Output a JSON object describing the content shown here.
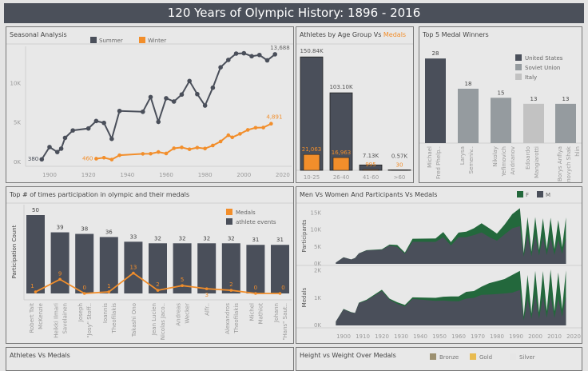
{
  "title": "120 Years of Olympic History: 1896 - 2016",
  "colors": {
    "summer": "#4a4f5a",
    "winter": "#f28e2b",
    "us": "#4a4f5a",
    "soviet": "#959b9f",
    "italy": "#c2c2c2",
    "female": "#23683c",
    "male": "#4a4f5a",
    "bronze": "#9c9070",
    "gold": "#e8bb50",
    "silver": "#e6e6e6"
  },
  "panels": {
    "seasonal": "Seasonal Analysis",
    "age": {
      "prefix": "Athletes by Age Group Vs ",
      "highlight": "Medals"
    },
    "top5": "Top 5 Medal Winners",
    "participation": "Top # of times participation in olympic and their medals",
    "menwomen": "Men Vs Women And Participants Vs Medals",
    "athletes_medals": "Athletes Vs Medals",
    "height_weight": "Height vs Weight Over Medals"
  },
  "height_weight_legend": [
    "Bronze",
    "Gold",
    "Silver"
  ],
  "chart_data": [
    {
      "type": "line",
      "title": "Seasonal Analysis",
      "legend": [
        "Summer",
        "Winter"
      ],
      "legend_position": "top",
      "yticks": [
        "0K",
        "5K",
        "10K"
      ],
      "xticks": [
        "1900",
        "1920",
        "1940",
        "1960",
        "1980",
        "2000",
        "2020"
      ],
      "ylim": [
        0,
        14500
      ],
      "xlim": [
        1887,
        2022
      ],
      "series": [
        {
          "name": "Summer",
          "x": [
            1896,
            1900,
            1904,
            1906,
            1908,
            1912,
            1920,
            1924,
            1928,
            1932,
            1936,
            1948,
            1952,
            1956,
            1960,
            1964,
            1968,
            1972,
            1976,
            1980,
            1984,
            1988,
            1992,
            1996,
            2000,
            2004,
            2008,
            2012,
            2016
          ],
          "y": [
            380,
            1936,
            1301,
            1733,
            3101,
            4040,
            4292,
            5233,
            4992,
            2969,
            6506,
            6405,
            8270,
            5127,
            8119,
            7702,
            8588,
            10304,
            8641,
            7191,
            9454,
            12037,
            12977,
            13780,
            13821,
            13443,
            13602,
            12920,
            13688
          ],
          "labels": {
            "first": "380",
            "last": "13,688"
          }
        },
        {
          "name": "Winter",
          "x": [
            1924,
            1928,
            1932,
            1936,
            1948,
            1952,
            1956,
            1960,
            1964,
            1968,
            1972,
            1976,
            1980,
            1984,
            1988,
            1992,
            1994,
            1998,
            2002,
            2006,
            2010,
            2014
          ],
          "y": [
            460,
            582,
            352,
            895,
            1075,
            1088,
            1307,
            1116,
            1778,
            1891,
            1655,
            1861,
            1746,
            2134,
            2639,
            3436,
            3160,
            3605,
            4109,
            4382,
            4402,
            4891
          ],
          "labels": {
            "first": "460",
            "last": "4,891"
          }
        }
      ]
    },
    {
      "type": "bar",
      "title": "Athletes by Age Group Vs Medals",
      "categories": [
        "10-25",
        "26-40",
        "41-60",
        ">60"
      ],
      "series": [
        {
          "name": "Athletes",
          "values": [
            150840,
            103100,
            7130,
            570
          ],
          "labels": [
            "150.84K",
            "103.10K",
            "7.13K",
            "0.57K"
          ]
        },
        {
          "name": "Medals",
          "values": [
            21063,
            16963,
            995,
            30
          ],
          "labels": [
            "21,063",
            "16,963",
            "995",
            "30"
          ]
        }
      ]
    },
    {
      "type": "bar",
      "title": "Top 5 Medal Winners",
      "legend": [
        "United States",
        "Soviet Union",
        "Italy"
      ],
      "legend_position": "right",
      "categories": [
        [
          "Michael",
          "Fred Phelp.."
        ],
        [
          "Larysa",
          "Semeniv.."
        ],
        [
          "Nikolay",
          "Yefimovich",
          "Andrianov"
        ],
        [
          "Edoardo",
          "Mangiarotti"
        ],
        [
          "Borys Anfiya",
          "novych Shak",
          "hlin"
        ]
      ],
      "values": [
        28,
        18,
        15,
        13,
        13
      ],
      "country": [
        "United States",
        "Soviet Union",
        "Soviet Union",
        "Italy",
        "Soviet Union"
      ]
    },
    {
      "type": "bar",
      "title": "Top # of times participation in olympic and their medals",
      "ylabel": "Participation Count",
      "legend": [
        "Medals",
        "athlete events"
      ],
      "legend_position": "top-right",
      "categories": [
        [
          "Robert Tait",
          "McKenzie"
        ],
        [
          "Heikki Ilmari",
          "Savolainen"
        ],
        [
          "Joseph",
          "\"Josy\" Stoff.."
        ],
        [
          "Ioannis",
          "Theofilakis"
        ],
        [
          "Takashi Ono"
        ],
        [
          "Jean Lucien",
          "Nicolas Jaco.."
        ],
        [
          "Andreas",
          "Wecker"
        ],
        [
          "Alfr.."
        ],
        [
          "Alexandros",
          "Theofilakis"
        ],
        [
          "Michel",
          "Mathiot"
        ],
        [
          "Johann",
          "\"Hans\" Saut.."
        ]
      ],
      "series": [
        {
          "name": "athlete events",
          "type": "bar",
          "values": [
            50,
            39,
            38,
            36,
            33,
            32,
            32,
            32,
            32,
            31,
            31
          ]
        },
        {
          "name": "Medals",
          "type": "line",
          "values": [
            1,
            9,
            0,
            1,
            13,
            2,
            5,
            3,
            2,
            0,
            0
          ]
        }
      ]
    },
    {
      "type": "area",
      "title": "Men Vs Women And Participants Vs Medals",
      "legend": [
        "F",
        "M"
      ],
      "stacked": true,
      "xticks": [
        "1900",
        "1910",
        "1920",
        "1930",
        "1940",
        "1950",
        "1960",
        "1970",
        "1980",
        "1990",
        "2000",
        "2010",
        "2020"
      ],
      "x": [
        1896,
        1900,
        1904,
        1906,
        1908,
        1912,
        1920,
        1924,
        1928,
        1932,
        1936,
        1948,
        1952,
        1956,
        1960,
        1964,
        1968,
        1972,
        1976,
        1980,
        1984,
        1988,
        1992,
        1994,
        1996,
        1998,
        2000,
        2002,
        2004,
        2006,
        2008,
        2010,
        2012,
        2014,
        2016
      ],
      "panels": [
        {
          "ylabel": "Participants",
          "yticks": [
            "0K",
            "5K",
            "10K",
            "15K"
          ],
          "ylim": [
            0,
            16500
          ],
          "M": [
            380,
            1903,
            1285,
            1722,
            3054,
            3953,
            4158,
            5432,
            4992,
            2969,
            6506,
            6480,
            7858,
            5434,
            7835,
            7880,
            8479,
            9259,
            7902,
            6837,
            8688,
            10476,
            11113,
            2060,
            8780,
            2205,
            8421,
            2509,
            7943,
            2582,
            7802,
            2602,
            7120,
            2891,
            7488
          ],
          "F": [
            0,
            33,
            16,
            11,
            47,
            87,
            134,
            261,
            582,
            352,
            895,
            1000,
            1500,
            1000,
            1400,
            1600,
            2000,
            2700,
            2600,
            2100,
            2900,
            4200,
            5300,
            1100,
            5000,
            1400,
            5400,
            1600,
            5500,
            1800,
            5800,
            1800,
            5800,
            2000,
            6200
          ]
        },
        {
          "ylabel": "Medals",
          "yticks": [
            "0K",
            "1K",
            "2K"
          ],
          "ylim": [
            0,
            2050
          ],
          "M": [
            143,
            589,
            476,
            453,
            816,
            911,
            1263,
            940,
            790,
            695,
            970,
            900,
            910,
            890,
            885,
            980,
            1010,
            1120,
            1130,
            1150,
            1170,
            1200,
            1300,
            180,
            1000,
            240,
            1120,
            250,
            1080,
            280,
            1100,
            270,
            990,
            320,
            1050
          ],
          "F": [
            0,
            15,
            10,
            5,
            15,
            30,
            45,
            40,
            60,
            55,
            60,
            110,
            140,
            170,
            175,
            250,
            250,
            300,
            420,
            470,
            530,
            650,
            700,
            150,
            850,
            200,
            880,
            230,
            910,
            250,
            950,
            250,
            950,
            280,
            970
          ]
        }
      ]
    }
  ]
}
